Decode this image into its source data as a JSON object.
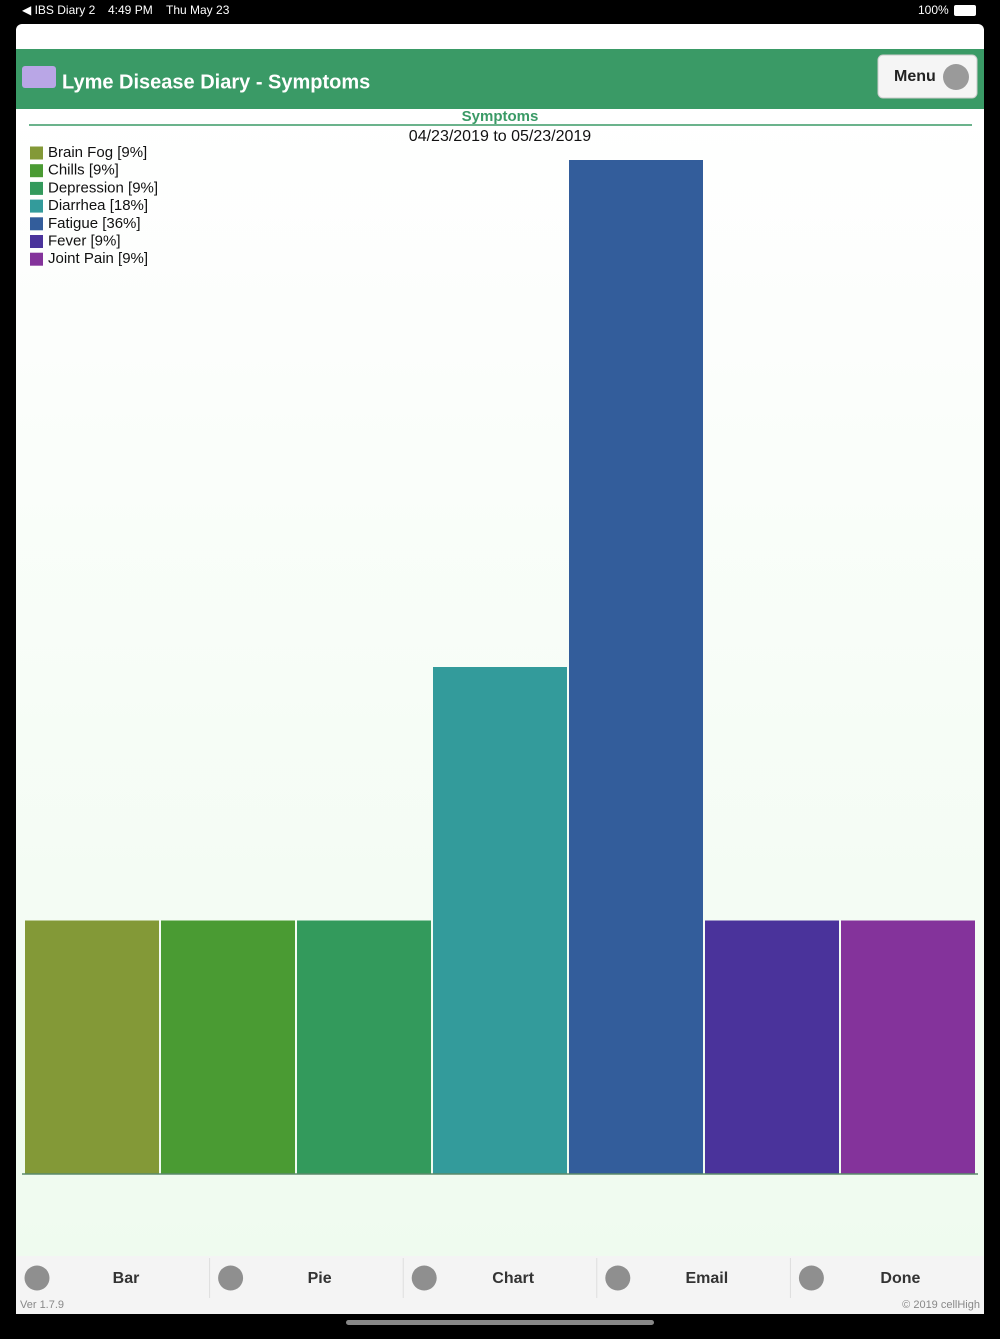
{
  "status_bar": {
    "back": "◀ IBS Diary 2",
    "time": "4:49 PM",
    "date": "Thu May 23",
    "battery": "100%"
  },
  "header": {
    "title": "Lyme Disease Diary - Symptoms",
    "menu": "Menu"
  },
  "chart_data": {
    "type": "bar",
    "title": "Symptoms",
    "subtitle": "04/23/2019 to 05/23/2019",
    "categories": [
      "Brain Fog [9%]",
      "Chills [9%]",
      "Depression [9%]",
      "Diarrhea [18%]",
      "Fatigue [36%]",
      "Fever [9%]",
      "Joint Pain [9%]"
    ],
    "values": [
      9,
      9,
      9,
      18,
      36,
      9,
      9
    ],
    "colors": [
      "#839937",
      "#4a9b33",
      "#339a5c",
      "#339b9b",
      "#335d9b",
      "#4a339b",
      "#84339b"
    ],
    "ylim": [
      0,
      36
    ],
    "legend": "top-left"
  },
  "toolbar": [
    "Bar",
    "Pie",
    "Chart",
    "Email",
    "Done"
  ],
  "footer": {
    "version": "Ver 1.7.9",
    "copyright": "© 2019 cellHigh"
  }
}
